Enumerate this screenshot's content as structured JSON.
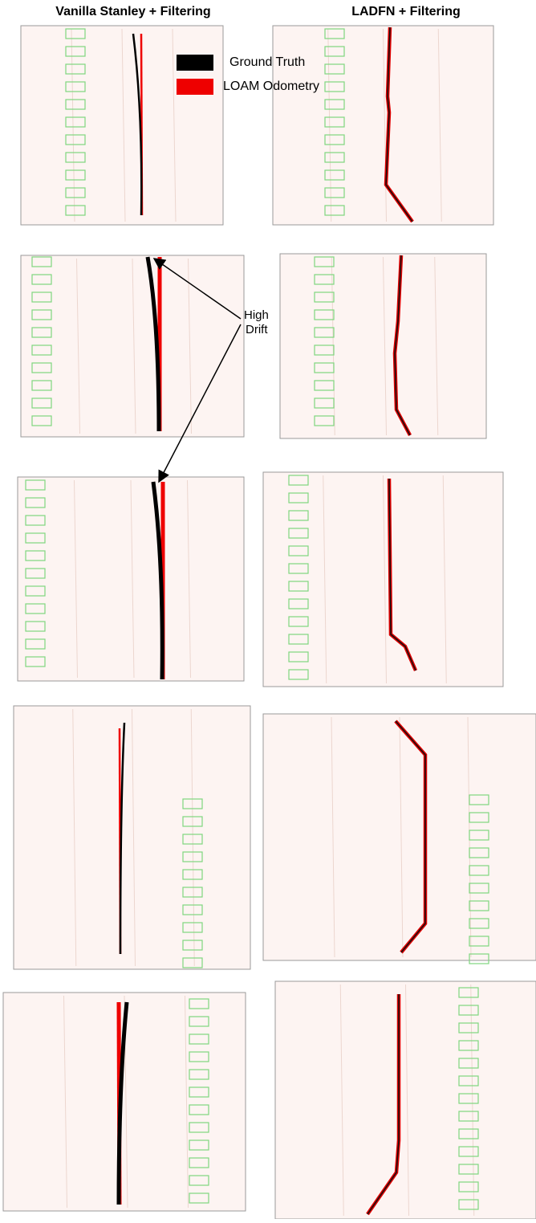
{
  "header": {
    "left": "Vanilla Stanley + Filtering",
    "right": "LADFN + Filtering"
  },
  "legend": {
    "items": [
      "Ground Truth",
      "LOAM Odometry"
    ]
  },
  "annotation": {
    "lines": [
      "High",
      "Drift"
    ]
  }
}
